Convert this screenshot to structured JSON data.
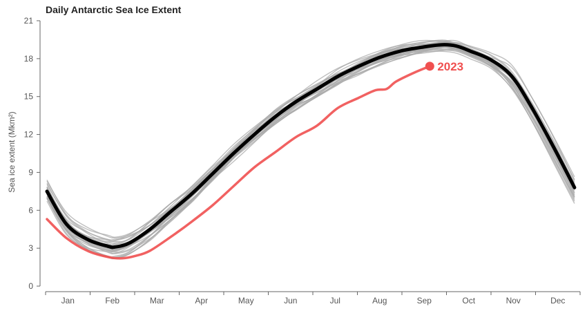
{
  "chart_data": {
    "type": "line",
    "title": "Daily Antarctic Sea Ice Extent",
    "ylabel": "Sea ice extent (Mkm²)",
    "xlabel": "",
    "ylim": [
      0,
      21
    ],
    "yticks": [
      "0",
      "3",
      "6",
      "9",
      "12",
      "15",
      "18",
      "21"
    ],
    "months": [
      "Jan",
      "Feb",
      "Mar",
      "Apr",
      "May",
      "Jun",
      "Jul",
      "Aug",
      "Sep",
      "Oct",
      "Nov",
      "Dec"
    ],
    "grid": false,
    "colors": {
      "history": "#aaaaaa",
      "mean": "#000000",
      "highlight": "#f05050"
    },
    "series": [
      {
        "name": "mean",
        "values": [
          [
            1,
            7.5
          ],
          [
            15,
            4.9
          ],
          [
            30,
            3.7
          ],
          [
            45,
            3.15
          ],
          [
            50,
            3.1
          ],
          [
            60,
            3.4
          ],
          [
            75,
            4.5
          ],
          [
            90,
            5.9
          ],
          [
            105,
            7.3
          ],
          [
            120,
            8.9
          ],
          [
            135,
            10.5
          ],
          [
            150,
            12.0
          ],
          [
            165,
            13.4
          ],
          [
            180,
            14.6
          ],
          [
            195,
            15.6
          ],
          [
            210,
            16.6
          ],
          [
            225,
            17.4
          ],
          [
            240,
            18.1
          ],
          [
            255,
            18.6
          ],
          [
            270,
            18.9
          ],
          [
            285,
            19.1
          ],
          [
            295,
            19.0
          ],
          [
            305,
            18.6
          ],
          [
            320,
            17.9
          ],
          [
            335,
            16.6
          ],
          [
            350,
            14.0
          ],
          [
            365,
            11.0
          ],
          [
            380,
            7.8
          ]
        ]
      },
      {
        "name": "2023",
        "label": "2023",
        "values": [
          [
            1,
            5.3
          ],
          [
            15,
            3.8
          ],
          [
            30,
            2.8
          ],
          [
            45,
            2.3
          ],
          [
            55,
            2.2
          ],
          [
            65,
            2.4
          ],
          [
            75,
            2.8
          ],
          [
            90,
            3.9
          ],
          [
            105,
            5.1
          ],
          [
            120,
            6.4
          ],
          [
            135,
            7.9
          ],
          [
            150,
            9.4
          ],
          [
            165,
            10.6
          ],
          [
            180,
            11.8
          ],
          [
            195,
            12.7
          ],
          [
            210,
            14.1
          ],
          [
            225,
            14.9
          ],
          [
            237,
            15.5
          ],
          [
            245,
            15.6
          ],
          [
            252,
            16.2
          ],
          [
            265,
            16.9
          ],
          [
            276,
            17.4
          ]
        ]
      }
    ]
  }
}
